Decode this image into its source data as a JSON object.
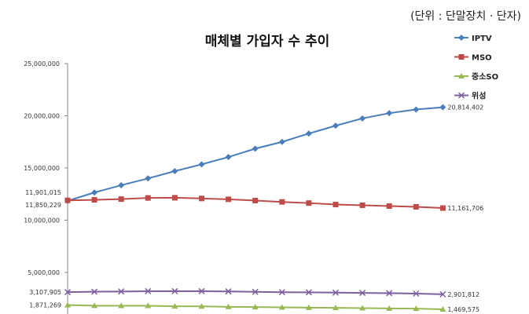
{
  "unit_note": "(단위 : 단말장치 · 단자)",
  "chart_data": {
    "type": "line",
    "title": "매체별 가입자 수 추이",
    "xlabel": "",
    "ylabel": "",
    "ylim": [
      0,
      25000000
    ],
    "y_ticks": [
      "25,000,000",
      "20,000,000",
      "15,000,000",
      "10,000,000",
      "5,000,000"
    ],
    "y_tick_values": [
      25000000,
      20000000,
      15000000,
      10000000,
      5000000
    ],
    "grid": false,
    "legend_position": "right",
    "series": [
      {
        "name": "IPTV",
        "color": "#4a7ebb",
        "marker": "diamond",
        "values": [
          11850229,
          12650000,
          13350000,
          14000000,
          14700000,
          15350000,
          16050000,
          16850000,
          17500000,
          18300000,
          19050000,
          19750000,
          20250000,
          20600000,
          20814402
        ],
        "labels": [
          {
            "index": 0,
            "text": "11,850,229"
          },
          {
            "index": 14,
            "text": "20,814,402"
          }
        ]
      },
      {
        "name": "MSO",
        "color": "#be4b48",
        "marker": "square",
        "values": [
          11901015,
          11950000,
          12020000,
          12130000,
          12150000,
          12080000,
          12000000,
          11880000,
          11750000,
          11640000,
          11500000,
          11430000,
          11350000,
          11280000,
          11161706
        ],
        "labels": [
          {
            "index": 0,
            "text": "11,901,015"
          },
          {
            "index": 14,
            "text": "11,161,706"
          }
        ]
      },
      {
        "name": "중소SO",
        "color": "#98b954",
        "marker": "triangle",
        "values": [
          1871269,
          1810000,
          1800000,
          1800000,
          1760000,
          1750000,
          1700000,
          1680000,
          1650000,
          1630000,
          1610000,
          1580000,
          1550000,
          1530000,
          1469575
        ],
        "labels": [
          {
            "index": 0,
            "text": "1,871,269"
          },
          {
            "index": 14,
            "text": "1,469,575"
          }
        ]
      },
      {
        "name": "위성",
        "color": "#7d60a0",
        "marker": "x",
        "values": [
          3107905,
          3150000,
          3170000,
          3200000,
          3200000,
          3200000,
          3180000,
          3140000,
          3100000,
          3090000,
          3060000,
          3040000,
          3010000,
          2970000,
          2901812
        ],
        "labels": [
          {
            "index": 0,
            "text": "3,107,905"
          },
          {
            "index": 14,
            "text": "2,901,812"
          }
        ]
      }
    ]
  }
}
